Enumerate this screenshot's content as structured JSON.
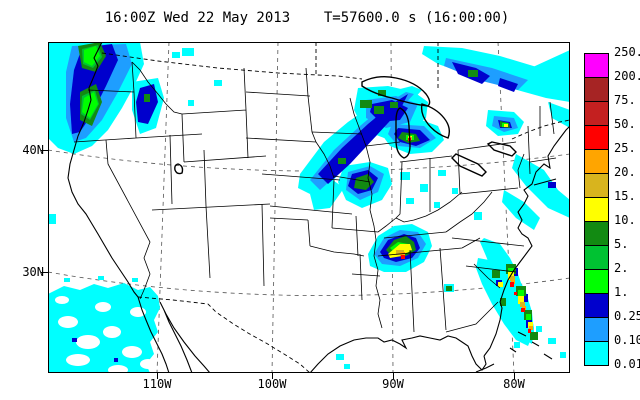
{
  "title": "16:00Z Wed 22 May 2013    T=57600.0 s (16:00:00)",
  "axes": {
    "y_left": [
      "40N",
      "30N"
    ],
    "x_bottom": [
      "110W",
      "100W",
      "90W",
      "80W"
    ]
  },
  "colorbar": {
    "top_label": "250.",
    "levels": [
      {
        "color": "#FF00FF",
        "label": "200."
      },
      {
        "color": "#A62424",
        "label": "75."
      },
      {
        "color": "#C42020",
        "label": "50."
      },
      {
        "color": "#FF0000",
        "label": "25."
      },
      {
        "color": "#FFA500",
        "label": "20."
      },
      {
        "color": "#D8B41E",
        "label": "15."
      },
      {
        "color": "#FFFF00",
        "label": "10."
      },
      {
        "color": "#128A12",
        "label": "5."
      },
      {
        "color": "#00C232",
        "label": "2."
      },
      {
        "color": "#00FF00",
        "label": "1."
      },
      {
        "color": "#0000CD",
        "label": "0.25"
      },
      {
        "color": "#1E9EFF",
        "label": "0.10"
      },
      {
        "color": "#00FFFF",
        "label": "0.01"
      }
    ]
  },
  "map_notes": {
    "projection_gridlines": [
      "110W",
      "100W",
      "90W",
      "80W",
      "40N",
      "30N"
    ],
    "shaded_field": "precipitation"
  }
}
